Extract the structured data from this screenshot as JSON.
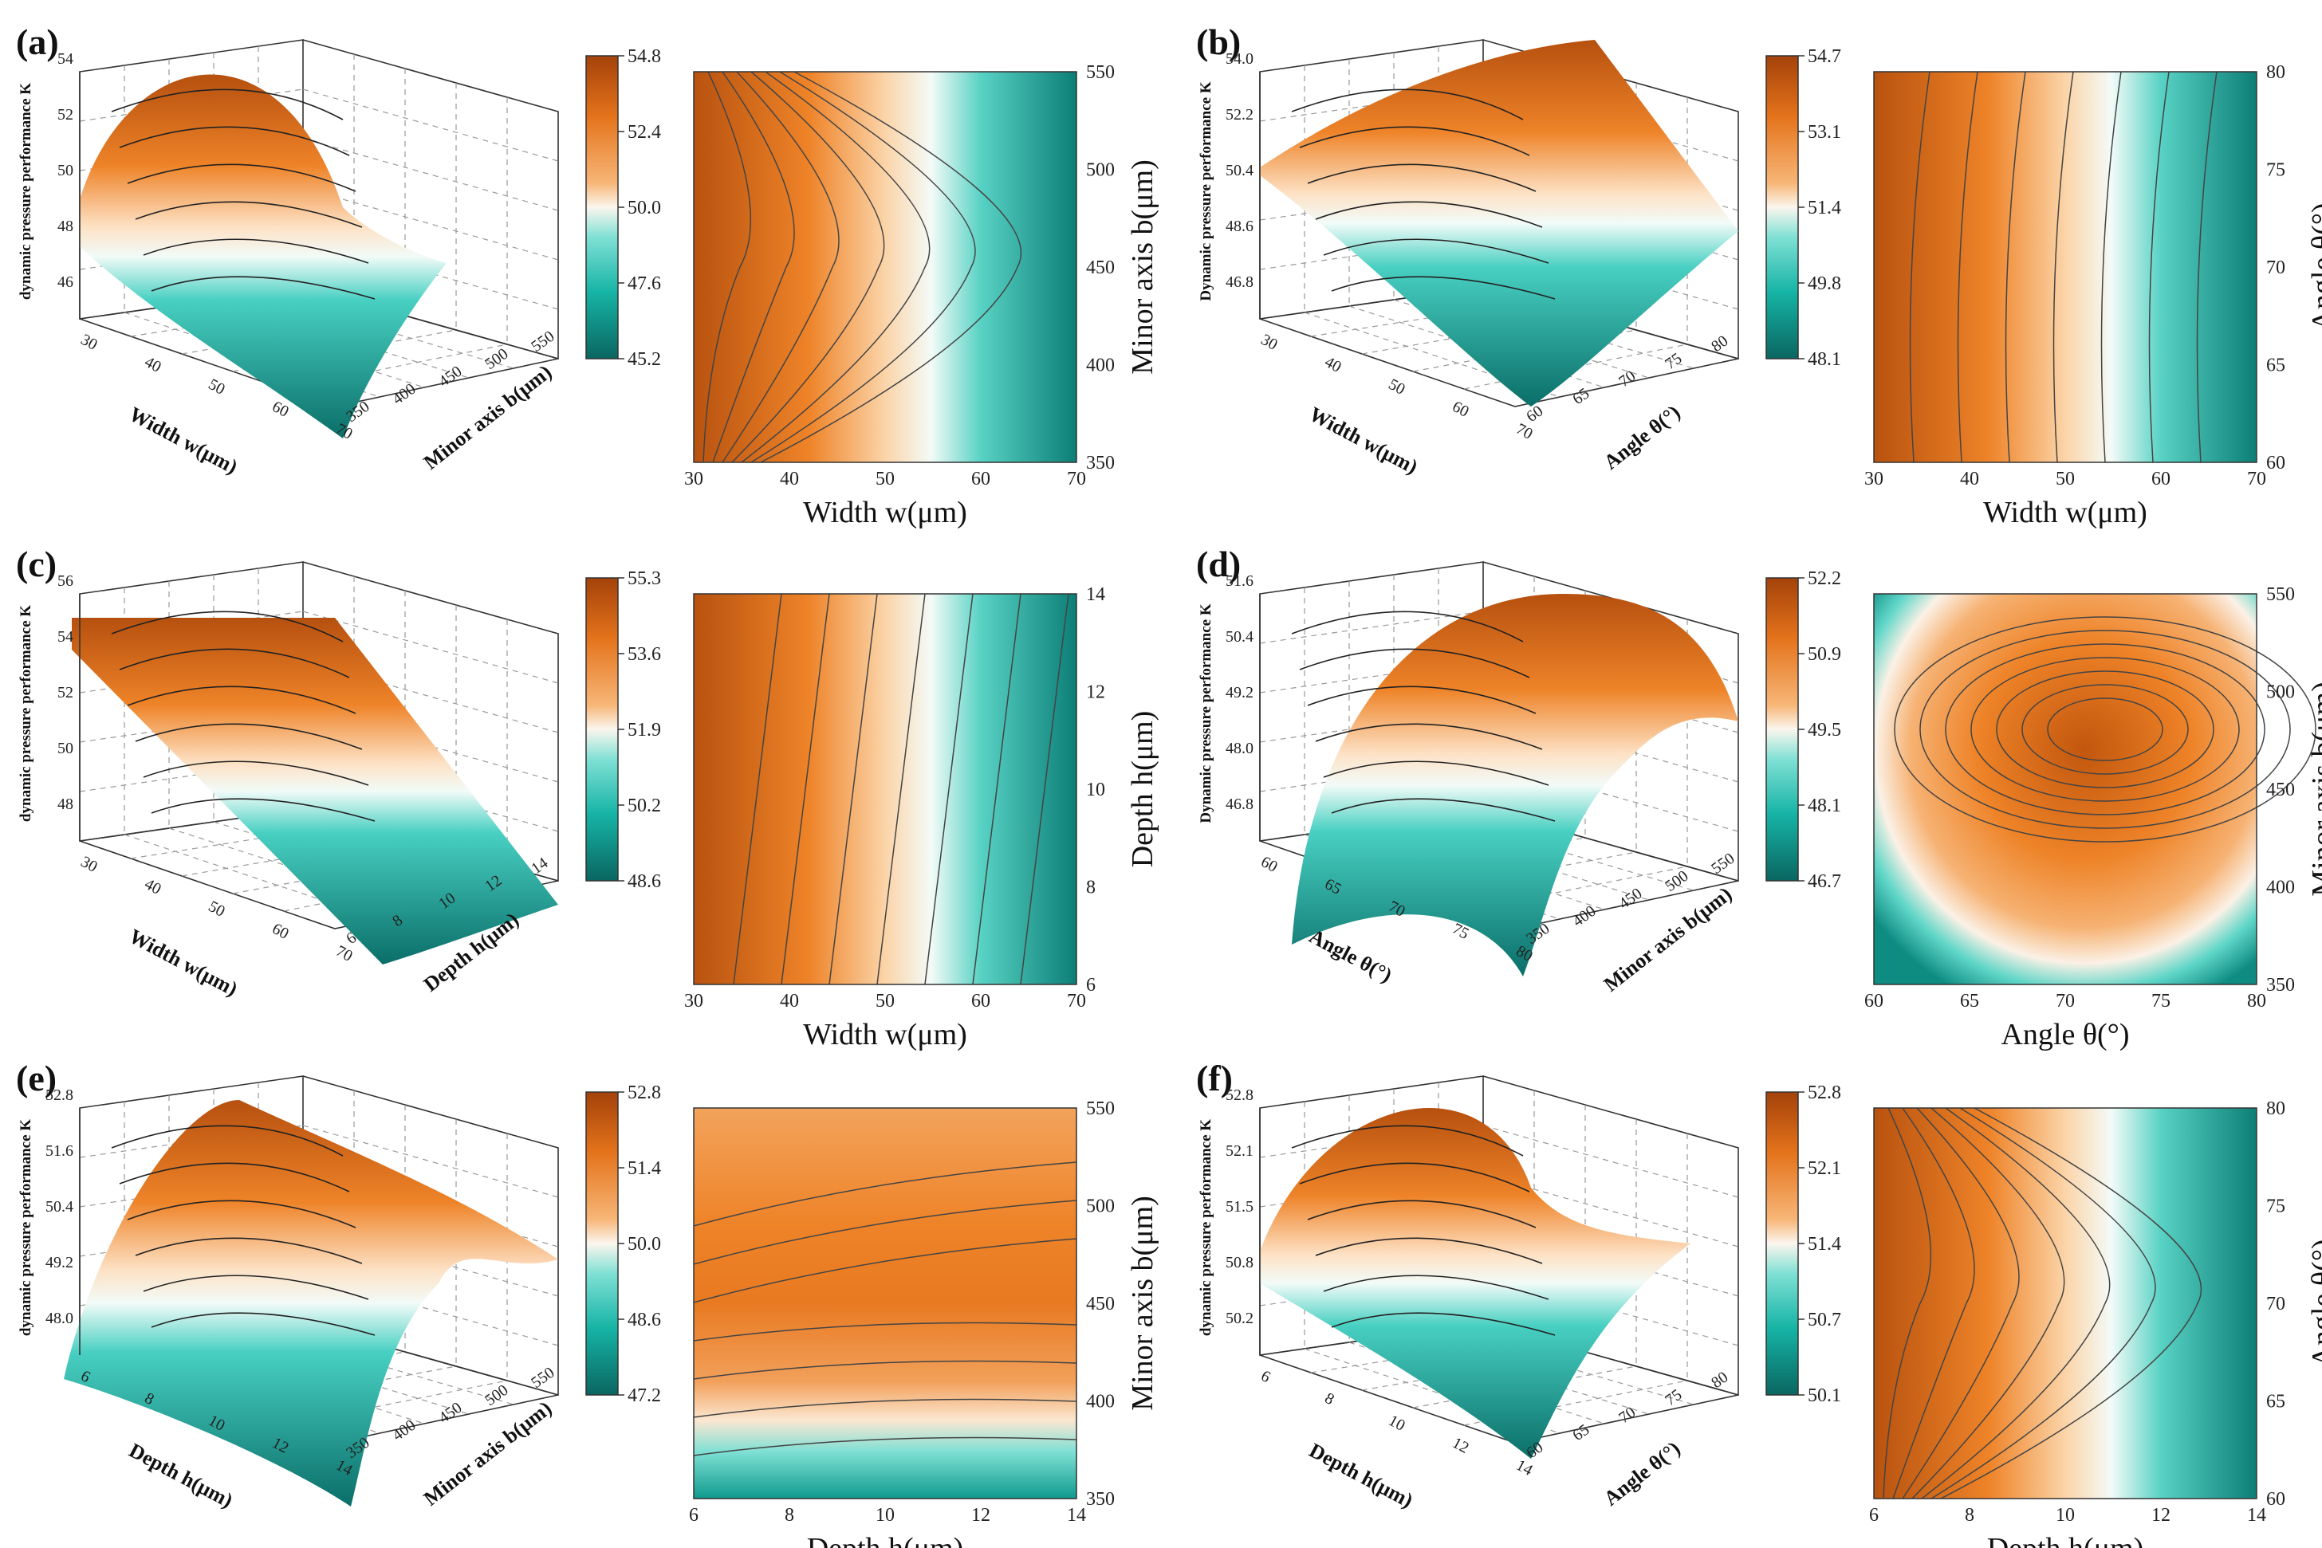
{
  "chart_data": [
    {
      "type": "surface-contour",
      "panel": "(a)",
      "zlabel": "dynamic pressure performance K",
      "x3d_label": "Width w(μm)",
      "y3d_label": "Minor axis b(μm)",
      "x3d_ticks": [
        "30",
        "40",
        "50",
        "60",
        "70"
      ],
      "y3d_ticks": [
        "350",
        "400",
        "450",
        "500",
        "550"
      ],
      "z_ticks": [
        "46",
        "48",
        "50",
        "52",
        "54"
      ],
      "colorbar_ticks": [
        "54.8",
        "52.4",
        "50.0",
        "47.6",
        "45.2"
      ],
      "contour_xlabel": "Width w(μm)",
      "contour_ylabel": "Minor axis b(μm)",
      "contour_xticks": [
        "30",
        "40",
        "50",
        "60",
        "70"
      ],
      "contour_yticks": [
        "350",
        "400",
        "450",
        "500",
        "550"
      ],
      "xlim": [
        30,
        70
      ],
      "ylim": [
        350,
        550
      ],
      "zrange": [
        45.2,
        54.8
      ]
    },
    {
      "type": "surface-contour",
      "panel": "(b)",
      "zlabel": "Dynamic pressure performance K",
      "x3d_label": "Width w(μm)",
      "y3d_label": "Angle θ(°)",
      "x3d_ticks": [
        "30",
        "40",
        "50",
        "60",
        "70"
      ],
      "y3d_ticks": [
        "60",
        "65",
        "70",
        "75",
        "80"
      ],
      "z_ticks": [
        "46.8",
        "48.6",
        "50.4",
        "52.2",
        "54.0"
      ],
      "colorbar_ticks": [
        "54.7",
        "53.1",
        "51.4",
        "49.8",
        "48.1"
      ],
      "contour_xlabel": "Width w(μm)",
      "contour_ylabel": "Angle θ(°)",
      "contour_xticks": [
        "30",
        "40",
        "50",
        "60",
        "70"
      ],
      "contour_yticks": [
        "60",
        "65",
        "70",
        "75",
        "80"
      ],
      "xlim": [
        30,
        70
      ],
      "ylim": [
        60,
        80
      ],
      "zrange": [
        48.1,
        54.7
      ]
    },
    {
      "type": "surface-contour",
      "panel": "(c)",
      "zlabel": "dynamic pressure performance K",
      "x3d_label": "Width w(μm)",
      "y3d_label": "Depth h(μm)",
      "x3d_ticks": [
        "30",
        "40",
        "50",
        "60",
        "70"
      ],
      "y3d_ticks": [
        "6",
        "8",
        "10",
        "12",
        "14"
      ],
      "z_ticks": [
        "48",
        "50",
        "52",
        "54",
        "56"
      ],
      "colorbar_ticks": [
        "55.3",
        "53.6",
        "51.9",
        "50.2",
        "48.6"
      ],
      "contour_xlabel": "Width w(μm)",
      "contour_ylabel": "Depth h(μm)",
      "contour_xticks": [
        "30",
        "40",
        "50",
        "60",
        "70"
      ],
      "contour_yticks": [
        "6",
        "8",
        "10",
        "12",
        "14"
      ],
      "xlim": [
        30,
        70
      ],
      "ylim": [
        6,
        14
      ],
      "zrange": [
        48.6,
        55.3
      ]
    },
    {
      "type": "surface-contour",
      "panel": "(d)",
      "zlabel": "Dynamic pressure performance K",
      "x3d_label": "Angle θ(°)",
      "y3d_label": "Minor axis b(μm)",
      "x3d_ticks": [
        "60",
        "65",
        "70",
        "75",
        "80"
      ],
      "y3d_ticks": [
        "350",
        "400",
        "450",
        "500",
        "550"
      ],
      "z_ticks": [
        "46.8",
        "48.0",
        "49.2",
        "50.4",
        "51.6"
      ],
      "colorbar_ticks": [
        "52.2",
        "50.9",
        "49.5",
        "48.1",
        "46.7"
      ],
      "contour_xlabel": "Angle θ(°)",
      "contour_ylabel": "Minor axis b(μm)",
      "contour_xticks": [
        "60",
        "65",
        "70",
        "75",
        "80"
      ],
      "contour_yticks": [
        "350",
        "400",
        "450",
        "500",
        "550"
      ],
      "xlim": [
        60,
        80
      ],
      "ylim": [
        350,
        550
      ],
      "zrange": [
        46.7,
        52.2
      ]
    },
    {
      "type": "surface-contour",
      "panel": "(e)",
      "zlabel": "dynamic pressure performance K",
      "x3d_label": "Depth h(μm)",
      "y3d_label": "Minor axis b(μm)",
      "x3d_ticks": [
        "6",
        "8",
        "10",
        "12",
        "14"
      ],
      "y3d_ticks": [
        "350",
        "400",
        "450",
        "500",
        "550"
      ],
      "z_ticks": [
        "48.0",
        "49.2",
        "50.4",
        "51.6",
        "52.8"
      ],
      "colorbar_ticks": [
        "52.8",
        "51.4",
        "50.0",
        "48.6",
        "47.2"
      ],
      "contour_xlabel": "Depth h(μm)",
      "contour_ylabel": "Minor axis b(μm)",
      "contour_xticks": [
        "6",
        "8",
        "10",
        "12",
        "14"
      ],
      "contour_yticks": [
        "350",
        "400",
        "450",
        "500",
        "550"
      ],
      "xlim": [
        6,
        14
      ],
      "ylim": [
        350,
        550
      ],
      "zrange": [
        47.2,
        52.8
      ]
    },
    {
      "type": "surface-contour",
      "panel": "(f)",
      "zlabel": "dynamic pressure performance K",
      "x3d_label": "Depth h(μm)",
      "y3d_label": "Angle θ(°)",
      "x3d_ticks": [
        "6",
        "8",
        "10",
        "12",
        "14"
      ],
      "y3d_ticks": [
        "60",
        "65",
        "70",
        "75",
        "80"
      ],
      "z_ticks": [
        "50.2",
        "50.8",
        "51.5",
        "52.1",
        "52.8"
      ],
      "colorbar_ticks": [
        "52.8",
        "52.1",
        "51.4",
        "50.7",
        "50.1"
      ],
      "contour_xlabel": "Depth h(μm)",
      "contour_ylabel": "Angle θ(°)",
      "contour_xticks": [
        "6",
        "8",
        "10",
        "12",
        "14"
      ],
      "contour_yticks": [
        "60",
        "65",
        "70",
        "75",
        "80"
      ],
      "xlim": [
        6,
        14
      ],
      "ylim": [
        60,
        80
      ],
      "zrange": [
        50.1,
        52.8
      ]
    }
  ],
  "colors": {
    "high": "#c8530a",
    "mid_high": "#f08a2a",
    "mid": "#fdf3e8",
    "mid_low": "#2cc7b8",
    "low": "#0b6e68"
  }
}
